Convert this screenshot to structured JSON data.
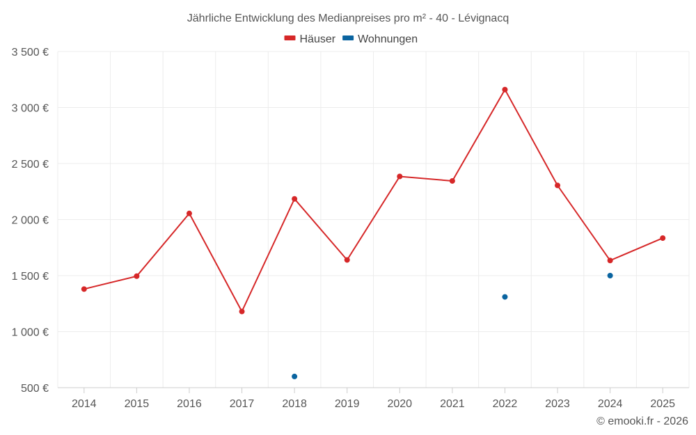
{
  "chart_data": {
    "type": "line",
    "title": "Jährliche Entwicklung des Medianpreises pro m² - 40 - Lévignacq",
    "categories": [
      "2014",
      "2015",
      "2016",
      "2017",
      "2018",
      "2019",
      "2020",
      "2021",
      "2022",
      "2023",
      "2024",
      "2025"
    ],
    "series": [
      {
        "name": "Häuser",
        "color": "#d62728",
        "values": [
          1380,
          1495,
          2055,
          1180,
          2185,
          1640,
          2385,
          2345,
          3160,
          2305,
          1635,
          1835
        ]
      },
      {
        "name": "Wohnungen",
        "color": "#0a64a0",
        "values": [
          null,
          null,
          null,
          null,
          600,
          null,
          null,
          null,
          1310,
          null,
          1500,
          null
        ]
      }
    ],
    "ylim": [
      500,
      3500
    ],
    "yticks": [
      500,
      1000,
      1500,
      2000,
      2500,
      3000,
      3500
    ],
    "ytick_labels": [
      "500 €",
      "1 000 €",
      "1 500 €",
      "2 000 €",
      "2 500 €",
      "3 000 €",
      "3 500 €"
    ],
    "xlabel": "",
    "ylabel": "",
    "grid": true,
    "legend": "top-center"
  },
  "credit": "© emooki.fr - 2026"
}
